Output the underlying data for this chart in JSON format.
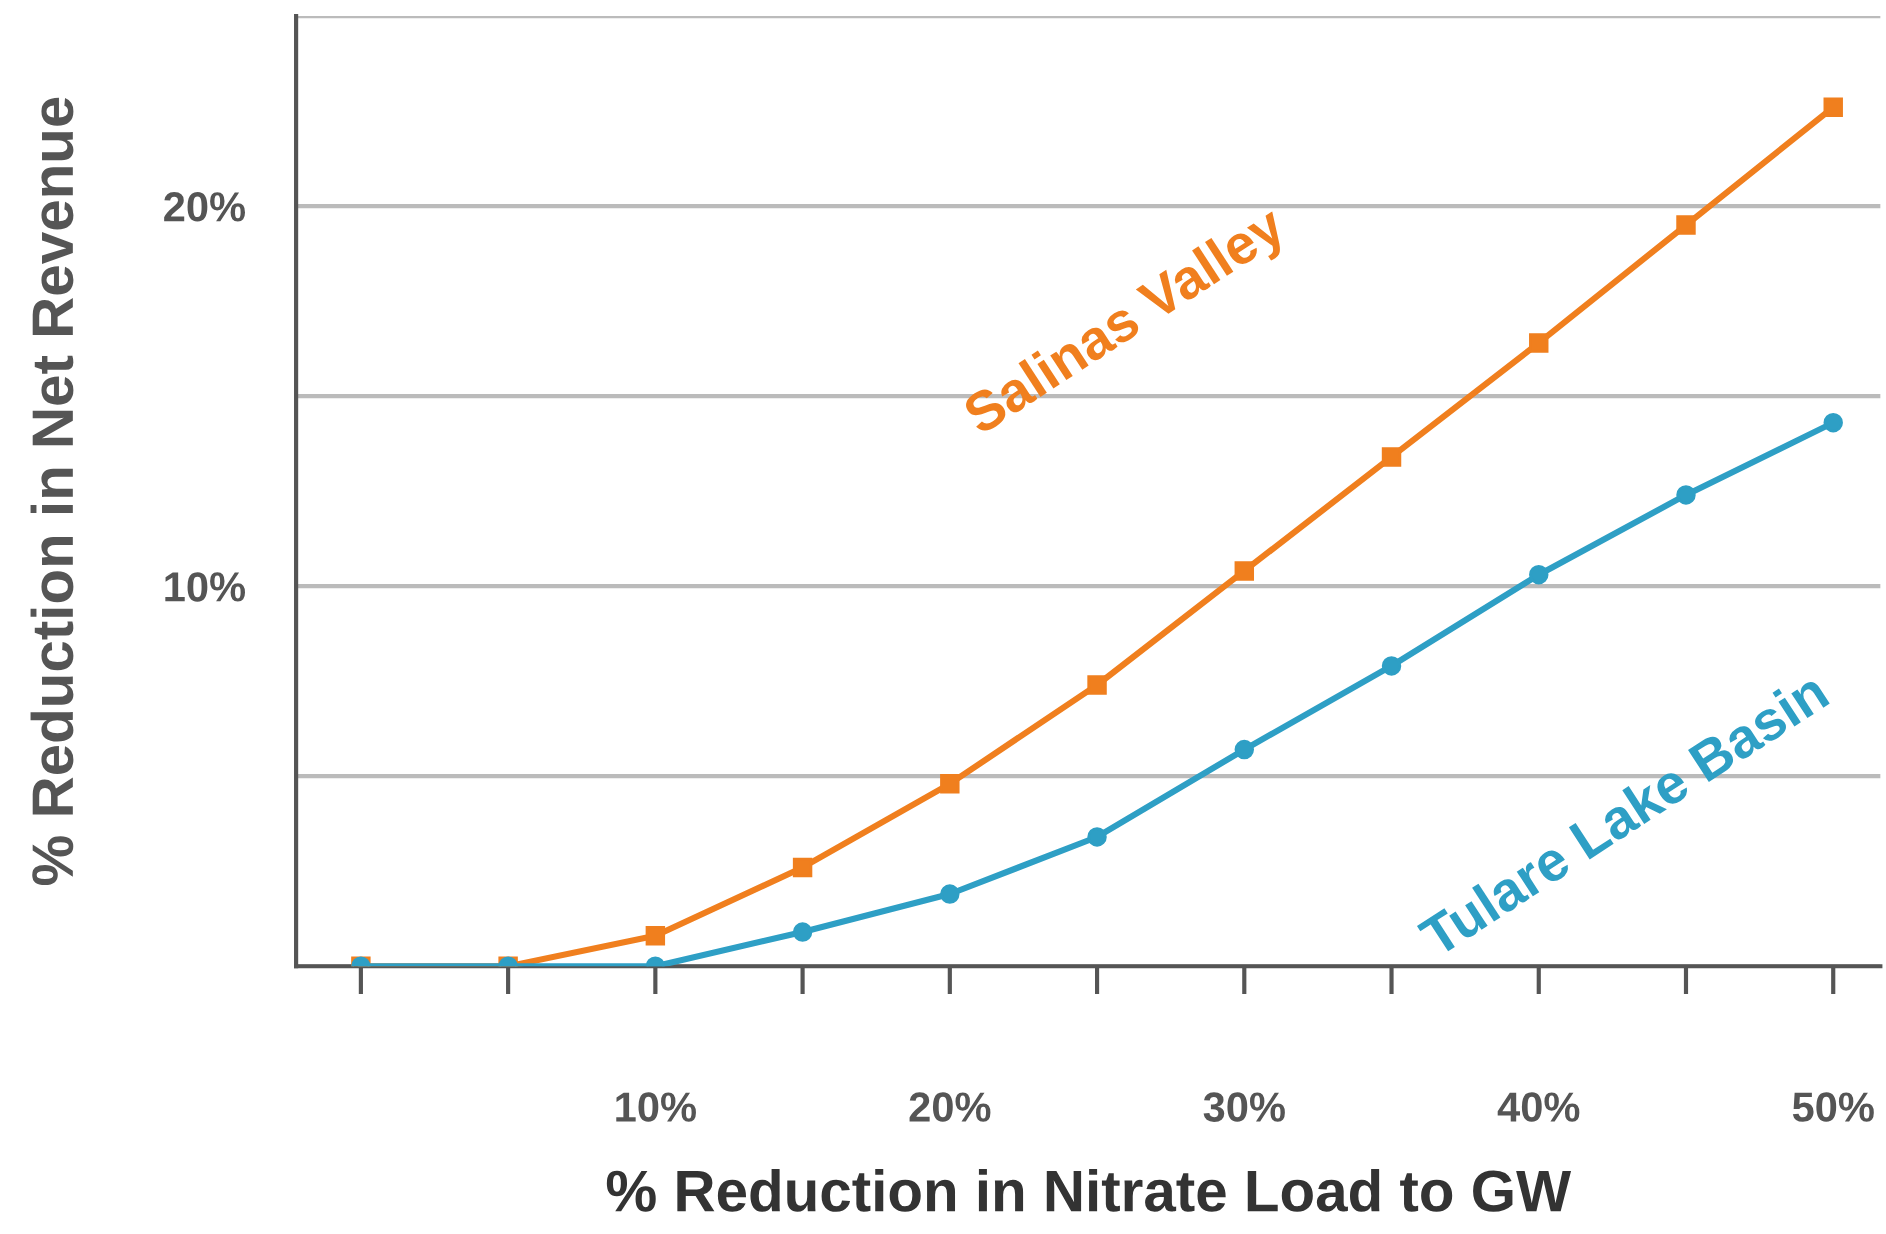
{
  "chart_data": {
    "type": "line",
    "xlabel": "% Reduction in Nitrate Load to GW",
    "ylabel": "% Reduction in Net Revenue",
    "x": [
      0,
      5,
      10,
      15,
      20,
      25,
      30,
      35,
      40,
      45,
      50
    ],
    "series": [
      {
        "name": "Salinas Valley",
        "color": "#f07f1e",
        "marker": "square",
        "values": [
          0,
          0,
          0.8,
          2.6,
          4.8,
          7.4,
          10.4,
          13.4,
          16.4,
          19.5,
          22.6
        ]
      },
      {
        "name": "Tulare Lake Basin",
        "color": "#2e9fc5",
        "marker": "circle",
        "values": [
          0,
          0,
          0,
          0.9,
          1.9,
          3.4,
          5.7,
          7.9,
          10.3,
          12.4,
          14.3
        ]
      }
    ],
    "xlim": [
      -2.2,
      51.6
    ],
    "ylim": [
      0,
      25
    ],
    "xticks": [
      {
        "value": 0,
        "label": null
      },
      {
        "value": 5,
        "label": null
      },
      {
        "value": 10,
        "label": "10%"
      },
      {
        "value": 15,
        "label": null
      },
      {
        "value": 20,
        "label": "20%"
      },
      {
        "value": 25,
        "label": null
      },
      {
        "value": 30,
        "label": "30%"
      },
      {
        "value": 35,
        "label": null
      },
      {
        "value": 40,
        "label": "40%"
      },
      {
        "value": 45,
        "label": null
      },
      {
        "value": 50,
        "label": "50%"
      }
    ],
    "yticks": [
      {
        "value": 0,
        "label": null
      },
      {
        "value": 5,
        "label": null
      },
      {
        "value": 10,
        "label": "10%"
      },
      {
        "value": 15,
        "label": null
      },
      {
        "value": 20,
        "label": "20%"
      },
      {
        "value": 25,
        "label": null
      }
    ],
    "grid": "y",
    "line_style": "solid"
  }
}
